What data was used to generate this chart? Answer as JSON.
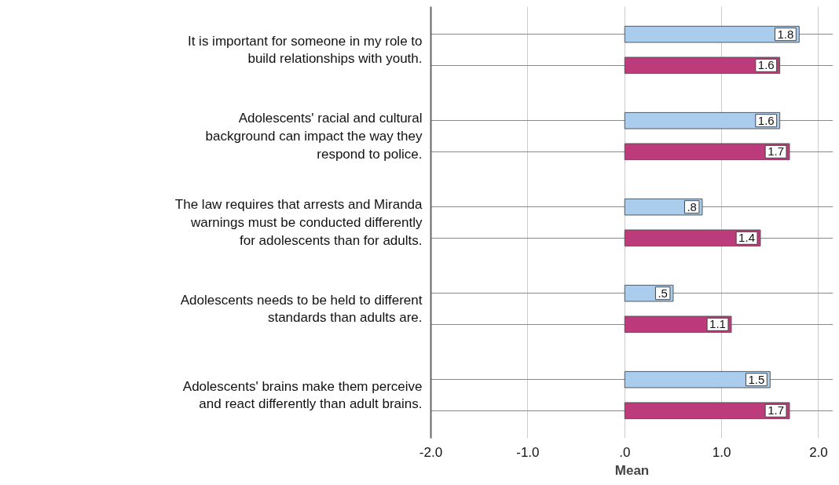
{
  "chart_data": {
    "type": "bar",
    "orientation": "horizontal",
    "xlabel": "Mean",
    "categories": [
      "It is important for someone in my role to build relationships with youth.",
      "Adolescents' racial and cultural background can impact the way they respond to police.",
      "The law requires that arrests and Miranda warnings must be conducted differently for adolescents than for adults.",
      "Adolescents needs to be held to different standards than adults are.",
      "Adolescents' brains make them perceive and react differently than adult brains."
    ],
    "series": [
      {
        "color": "#aacdee",
        "values": [
          1.8,
          1.6,
          0.8,
          0.5,
          1.5
        ],
        "value_labels": [
          "1.8",
          "1.6",
          ".8",
          ".5",
          "1.5"
        ]
      },
      {
        "color": "#bc3b7a",
        "values": [
          1.6,
          1.7,
          1.4,
          1.1,
          1.7
        ],
        "value_labels": [
          "1.6",
          "1.7",
          "1.4",
          "1.1",
          "1.7"
        ]
      }
    ],
    "xlim": [
      -2.0,
      2.15
    ],
    "xticks": [
      {
        "value": -2,
        "label": "-2.0"
      },
      {
        "value": -1,
        "label": "-1.0"
      },
      {
        "value": 0,
        "label": ".0"
      },
      {
        "value": 1,
        "label": "1.0"
      },
      {
        "value": 2,
        "label": "2.0"
      }
    ],
    "grid": true
  }
}
